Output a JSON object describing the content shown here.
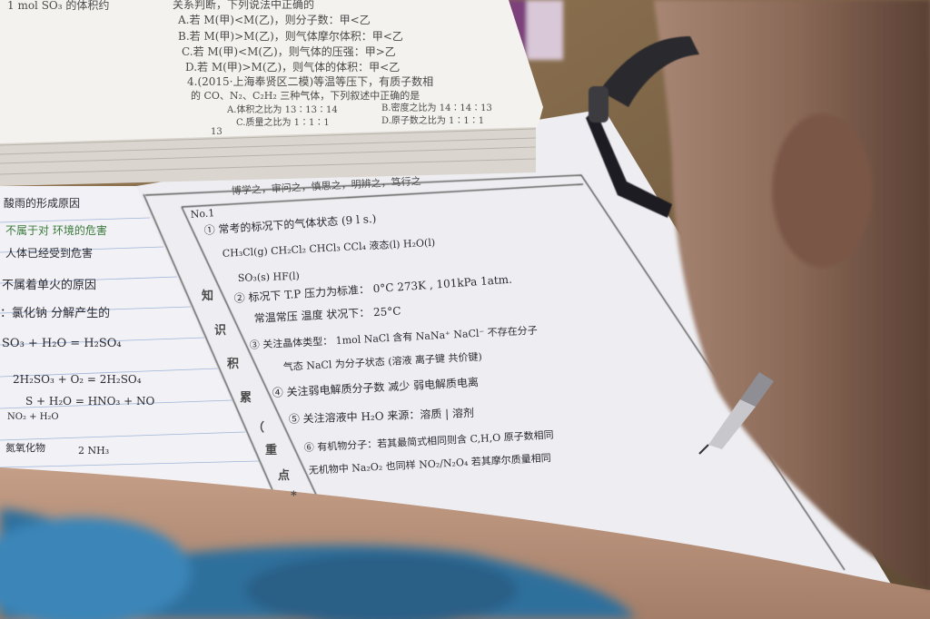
{
  "photo": {
    "caption": "Student writing handwritten chemistry notes in a workbook"
  },
  "textbook": {
    "lines": [
      "1 mol SO₃ 的体积约",
      "关系判断，下列说法中正确的",
      "A.若 M(甲)<M(乙)，则分子数：甲<乙",
      "B.若 M(甲)>M(乙)，则气体摩尔体积：甲<乙",
      "C.若 M(甲)<M(乙)，则气体的压强：甲>乙",
      "D.若 M(甲)>M(乙)，则气体的体积：甲<乙",
      "4.(2015·上海奉贤区二模)等温等压下，有质子数相",
      "的 CO、N₂、C₂H₂ 三种气体，下列叙述中正确的是",
      "A.体积之比为 13∶13∶14",
      "B.密度之比为 14∶14∶13",
      "C.质量之比为 1∶1∶1",
      "D.原子数之比为 1∶1∶1"
    ],
    "page_number": "13"
  },
  "worksheet": {
    "header": "博学之，审问之，慎思之，明辨之，笃行之",
    "side_title": [
      "知",
      "识",
      "积",
      "累",
      "（",
      "重",
      "点",
      "*"
    ],
    "notes": [
      "No.1",
      "① 常考的标况下的气体状态 (9 l s.)",
      "CH₃Cl(g)  CH₂Cl₂  CHCl₃  CCl₄ 液态(l)  H₂O(l)",
      "SO₃(s)    HF(l)",
      "② 标况下 T.P 压力为标准： 0°C  273K , 101kPa  1atm.",
      "常温常压 温度 状况下： 25°C",
      "③ 关注晶体类型： 1mol NaCl 含有 NaNa⁺  NaCl⁻ 不存在分子",
      "气态 NaCl 为分子状态 (溶液 离子键 共价键)",
      "④ 关注弱电解质分子数 减少 弱电解质电离",
      "⑤ 关注溶液中 H₂O 来源：溶质 | 溶剂",
      "⑥ 有机物分子：若其最简式相同则含 C,H,O 原子数相同",
      "无机物中 Na₂O₂ 也同样 NO₂/N₂O₄ 若其摩尔质量相同"
    ]
  },
  "left_notebook": {
    "lines": [
      "酸雨的形成原因",
      "不属于对 环境的危害",
      "人体已经受到危害",
      "不属着单火的原因",
      "：氯化钠 分解产生的",
      "SO₃ + H₂O = H₂SO₄",
      "2H₂SO₃ + O₂ = 2H₂SO₄",
      "S + H₂O = HNO₃ + NO",
      "NO₂ + H₂O",
      "氮氧化物",
      "2 NH₃"
    ]
  }
}
